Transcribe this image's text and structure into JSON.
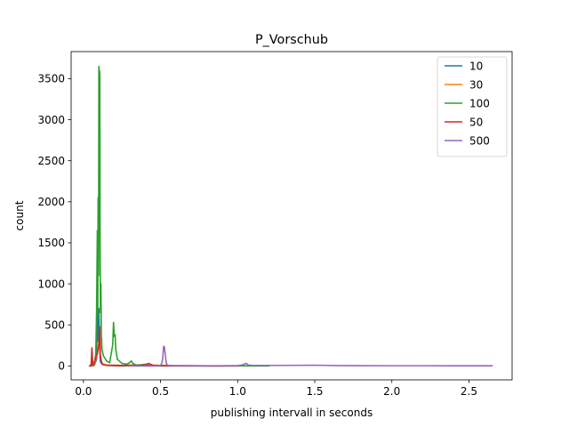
{
  "chart_data": {
    "type": "line",
    "title": "P_Vorschub",
    "xlabel": "publishing intervall in seconds",
    "ylabel": "count",
    "xlim": [
      -0.08,
      2.78
    ],
    "ylim": [
      -170,
      3830
    ],
    "xticks": [
      0.0,
      0.5,
      1.0,
      1.5,
      2.0,
      2.5
    ],
    "xtick_labels": [
      "0.0",
      "0.5",
      "1.0",
      "1.5",
      "2.0",
      "2.5"
    ],
    "yticks": [
      0,
      500,
      1000,
      1500,
      2000,
      2500,
      3000,
      3500
    ],
    "ytick_labels": [
      "0",
      "500",
      "1000",
      "1500",
      "2000",
      "2500",
      "3000",
      "3500"
    ],
    "grid": false,
    "legend_position": "top-right",
    "series": [
      {
        "name": "10",
        "color": "#1f77b4",
        "x": [
          0.05,
          0.07,
          0.085,
          0.09,
          0.095,
          0.1,
          0.105,
          0.11,
          0.12,
          0.15,
          0.2,
          0.25,
          0.3,
          0.4,
          0.6,
          0.9
        ],
        "y": [
          0,
          5,
          80,
          800,
          300,
          700,
          200,
          50,
          20,
          5,
          2,
          0,
          1,
          0,
          0,
          0
        ]
      },
      {
        "name": "30",
        "color": "#ff7f0e",
        "x": [
          0.05,
          0.06,
          0.07,
          0.08,
          0.09,
          0.1,
          0.11,
          0.12,
          0.15,
          0.2,
          0.3,
          0.5,
          0.7
        ],
        "y": [
          0,
          60,
          5,
          80,
          150,
          300,
          120,
          30,
          5,
          10,
          3,
          0,
          0
        ]
      },
      {
        "name": "100",
        "color": "#2ca02c",
        "x": [
          0.05,
          0.07,
          0.08,
          0.085,
          0.09,
          0.093,
          0.095,
          0.098,
          0.1,
          0.102,
          0.104,
          0.106,
          0.108,
          0.11,
          0.113,
          0.116,
          0.12,
          0.13,
          0.15,
          0.17,
          0.19,
          0.195,
          0.2,
          0.205,
          0.21,
          0.22,
          0.25,
          0.28,
          0.3,
          0.31,
          0.32,
          0.34,
          0.38,
          0.4,
          0.42,
          0.45,
          0.5,
          0.6,
          0.8,
          1.0,
          1.2
        ],
        "y": [
          0,
          20,
          150,
          650,
          1650,
          600,
          2050,
          1100,
          3650,
          2400,
          3600,
          3550,
          1500,
          650,
          1000,
          400,
          200,
          120,
          60,
          40,
          260,
          530,
          360,
          380,
          200,
          80,
          30,
          20,
          40,
          60,
          30,
          10,
          15,
          20,
          10,
          5,
          3,
          2,
          0,
          0,
          0
        ]
      },
      {
        "name": "50",
        "color": "#d62728",
        "x": [
          0.04,
          0.05,
          0.055,
          0.06,
          0.07,
          0.08,
          0.09,
          0.1,
          0.105,
          0.11,
          0.115,
          0.12,
          0.13,
          0.15,
          0.2,
          0.25,
          0.3,
          0.35,
          0.4,
          0.42,
          0.45,
          0.5,
          0.55,
          0.6,
          0.7,
          0.8,
          1.0
        ],
        "y": [
          0,
          20,
          220,
          10,
          30,
          100,
          150,
          250,
          480,
          120,
          60,
          30,
          15,
          10,
          5,
          3,
          10,
          5,
          10,
          30,
          10,
          5,
          3,
          2,
          1,
          0,
          0
        ]
      },
      {
        "name": "500",
        "color": "#9467bd",
        "x": [
          0.3,
          0.45,
          0.5,
          0.51,
          0.515,
          0.52,
          0.525,
          0.53,
          0.535,
          0.54,
          0.55,
          0.6,
          0.7,
          0.8,
          0.9,
          1.0,
          1.04,
          1.05,
          1.06,
          1.07,
          1.1,
          1.3,
          1.5,
          1.58,
          1.6,
          1.62,
          1.8,
          2.0,
          2.2,
          2.4,
          2.65
        ],
        "y": [
          0,
          0,
          5,
          40,
          120,
          240,
          230,
          150,
          60,
          20,
          5,
          3,
          2,
          2,
          2,
          3,
          15,
          30,
          25,
          10,
          5,
          6,
          8,
          6,
          5,
          4,
          3,
          2,
          2,
          1,
          1
        ]
      }
    ]
  }
}
